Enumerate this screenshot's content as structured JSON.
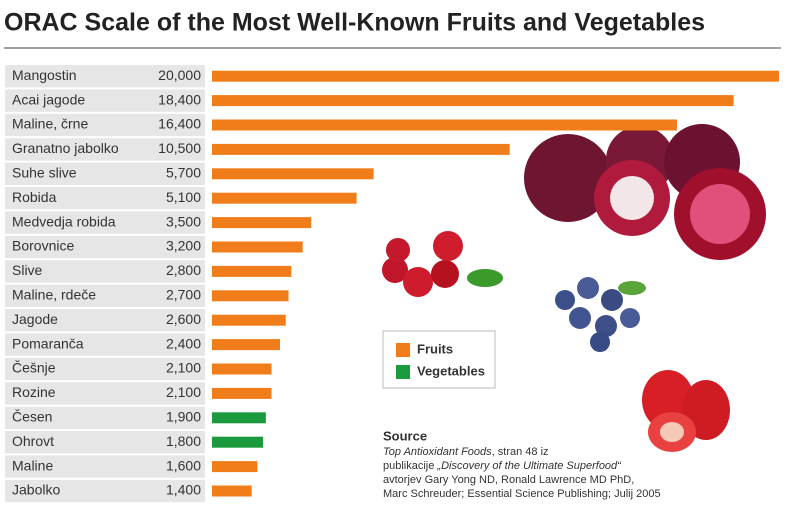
{
  "chart_data": {
    "type": "bar",
    "orientation": "horizontal",
    "title": "ORAC Scale of the Most Well-Known Fruits and Vegetables",
    "categories": [
      "Mangostin",
      "Acai jagode",
      "Maline, črne",
      "Granatno jabolko",
      "Suhe slive",
      "Robida",
      "Medvedja robida",
      "Borovnice",
      "Slive",
      "Maline, rdeče",
      "Jagode",
      "Pomaranča",
      "Češnje",
      "Rozine",
      "Česen",
      "Ohrovt",
      "Maline",
      "Jabolko"
    ],
    "series": [
      {
        "name": "Fruits",
        "color": "#f07d1a",
        "values": [
          20000,
          18400,
          16400,
          10500,
          5700,
          5100,
          3500,
          3200,
          2800,
          2700,
          2600,
          2400,
          2100,
          2100,
          null,
          null,
          1600,
          1400
        ],
        "value_labels": [
          "20,000",
          "18,400",
          "16,400",
          "10,500",
          "5,700",
          "5,100",
          "3,500",
          "3,200",
          "2,800",
          "2,700",
          "2,600",
          "2,400",
          "2,100",
          "2,100",
          null,
          null,
          "1,600",
          "1,400"
        ]
      },
      {
        "name": "Vegetables",
        "color": "#1a9a3c",
        "values": [
          null,
          null,
          null,
          null,
          null,
          null,
          null,
          null,
          null,
          null,
          null,
          null,
          null,
          null,
          1900,
          1800,
          null,
          null
        ],
        "value_labels": [
          null,
          null,
          null,
          null,
          null,
          null,
          null,
          null,
          null,
          null,
          null,
          null,
          null,
          null,
          "1,900",
          "1,800",
          null,
          null
        ]
      }
    ],
    "source": {
      "title": "Source",
      "lines": [
        [
          "Top Antioxidant Foods",
          ", stran 48 iz"
        ],
        [
          "publikacije ",
          "„Discovery of the Ultimate Superfood“"
        ],
        [
          "avtorjev Gary Yong ND, Ronald Lawrence MD PhD,"
        ],
        [
          "Marc Schreuder; Essential Science Publishing; Julij 2005"
        ]
      ]
    }
  }
}
